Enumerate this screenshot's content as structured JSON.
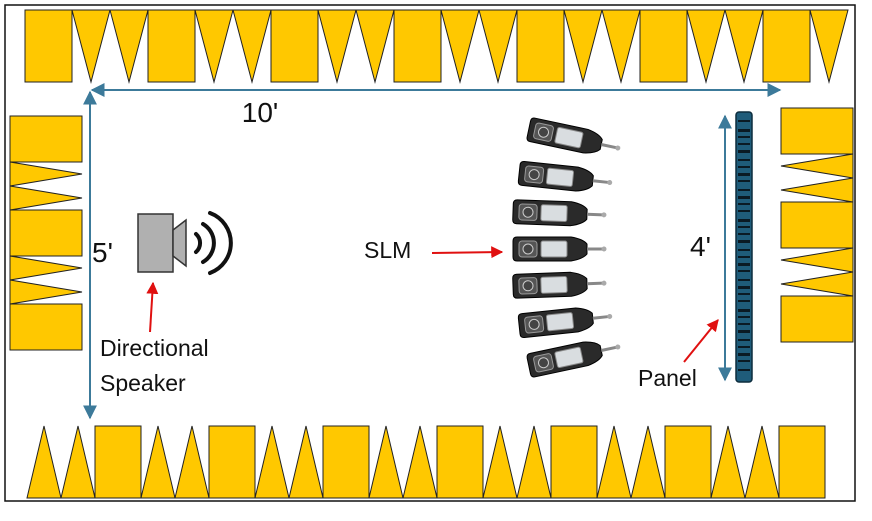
{
  "dimensions": {
    "length": "10'",
    "width": "5'",
    "panel_height": "4'"
  },
  "labels": {
    "slm": "SLM",
    "speaker_line1": "Directional",
    "speaker_line2": "Speaker",
    "panel": "Panel"
  },
  "colors": {
    "absorber": "#FFC800",
    "absorber_stroke": "#222222",
    "border": "#111111",
    "dimension_arrow": "#3C7A9A",
    "pointer_arrow": "#E01010",
    "speaker_fill": "#B0B0B0",
    "panel_fill": "#1F5C7A",
    "meter_body": "#2A2A2A"
  },
  "icons": {
    "speaker": "speaker-icon",
    "sound_waves": "sound-waves-icon",
    "meter": "sound-level-meter-icon",
    "panel": "panel-icon"
  },
  "meter_count": 7
}
